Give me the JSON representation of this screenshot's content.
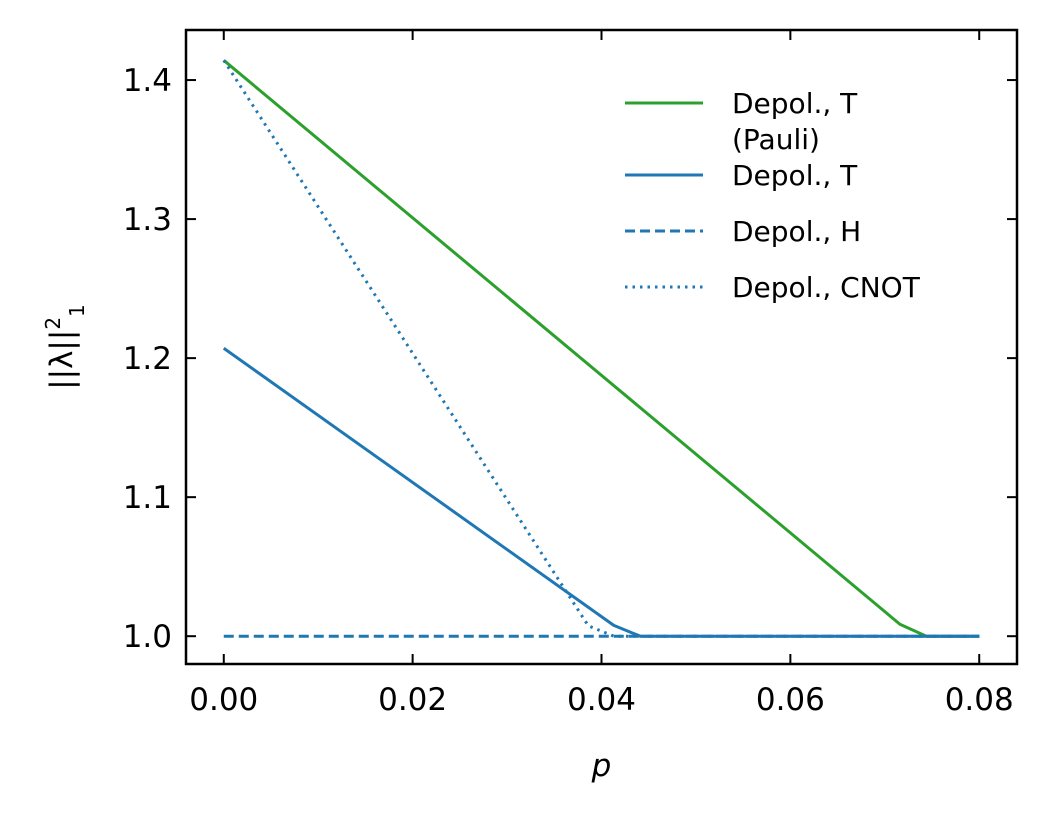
{
  "chart_data": {
    "type": "line",
    "title": "",
    "xlabel": "p",
    "ylabel": "||λ||",
    "ylabel_sup": "2",
    "ylabel_sub": "1",
    "xlim": [
      -0.004,
      0.084
    ],
    "ylim": [
      0.98,
      1.436
    ],
    "xticks": [
      0.0,
      0.02,
      0.04,
      0.06,
      0.08
    ],
    "xtick_labels": [
      "0.00",
      "0.02",
      "0.04",
      "0.06",
      "0.08"
    ],
    "yticks": [
      1.0,
      1.1,
      1.2,
      1.3,
      1.4
    ],
    "ytick_labels": [
      "1.0",
      "1.1",
      "1.2",
      "1.3",
      "1.4"
    ],
    "grid": false,
    "legend_position": "top-right",
    "series": [
      {
        "name": "Depol., T (Pauli)",
        "legend_lines": [
          "Depol., T",
          "(Pauli)"
        ],
        "color": "#2ca02c",
        "style": "solid",
        "x": [
          0.0,
          0.0716,
          0.0744,
          0.08
        ],
        "y": [
          1.4142,
          1.0086,
          1.0,
          1.0
        ]
      },
      {
        "name": "Depol., T",
        "legend_lines": [
          "Depol., T"
        ],
        "color": "#1f77b4",
        "style": "solid",
        "x": [
          0.0,
          0.0413,
          0.0441,
          0.08
        ],
        "y": [
          1.2071,
          1.0078,
          1.0,
          1.0
        ]
      },
      {
        "name": "Depol., H",
        "legend_lines": [
          "Depol., H"
        ],
        "color": "#1f77b4",
        "style": "dashed",
        "x": [
          0.0,
          0.08
        ],
        "y": [
          1.0,
          1.0
        ]
      },
      {
        "name": "Depol., CNOT",
        "legend_lines": [
          "Depol., CNOT"
        ],
        "color": "#1f77b4",
        "style": "dotted",
        "x": [
          0.0,
          0.0386,
          0.0413,
          0.08
        ],
        "y": [
          1.4142,
          1.0075,
          1.0,
          1.0
        ]
      }
    ]
  }
}
